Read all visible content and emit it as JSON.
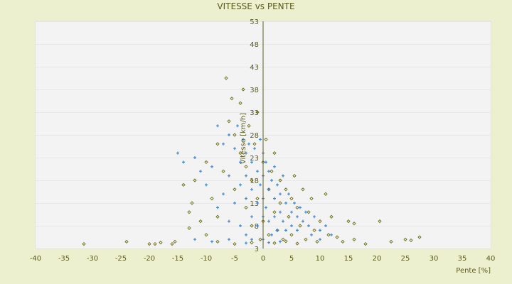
{
  "chart_data": {
    "type": "scatter",
    "title": "VITESSE vs PENTE",
    "xlabel": "Pente [%]",
    "ylabel": "Vitesse [km/h]",
    "xlim": [
      -40,
      40
    ],
    "ylim": [
      3,
      53
    ],
    "xticks": [
      -40,
      -35,
      -30,
      -25,
      -20,
      -15,
      -10,
      -5,
      0,
      5,
      10,
      15,
      20,
      25,
      30,
      35,
      40
    ],
    "yticks": [
      3,
      8,
      13,
      18,
      23,
      28,
      33,
      38,
      43,
      48,
      53
    ],
    "grid": "horizontal alternating bands",
    "legend": "none",
    "series": [
      {
        "color": "#6b6b10",
        "marker": "diamond",
        "points": [
          [
            -31.5,
            4
          ],
          [
            -24,
            4.5
          ],
          [
            -20,
            4
          ],
          [
            -19,
            4
          ],
          [
            -18,
            4.3
          ],
          [
            -16,
            4
          ],
          [
            -15.5,
            4.5
          ],
          [
            -14,
            17
          ],
          [
            -13,
            11
          ],
          [
            -13,
            7.5
          ],
          [
            -12.5,
            13
          ],
          [
            -12,
            18
          ],
          [
            -11,
            9
          ],
          [
            -10,
            22
          ],
          [
            -10,
            6
          ],
          [
            -9,
            14
          ],
          [
            -8,
            26
          ],
          [
            -8,
            10
          ],
          [
            -7,
            20
          ],
          [
            -6.5,
            40.5
          ],
          [
            -6,
            31
          ],
          [
            -5.5,
            36
          ],
          [
            -5,
            28
          ],
          [
            -5,
            16
          ],
          [
            -4,
            35
          ],
          [
            -4,
            24
          ],
          [
            -3.5,
            38
          ],
          [
            -3,
            21
          ],
          [
            -3,
            12
          ],
          [
            -2.5,
            30
          ],
          [
            -2,
            8
          ],
          [
            -2,
            18
          ],
          [
            -1.5,
            26
          ],
          [
            -1,
            33
          ],
          [
            -1,
            14
          ],
          [
            -0.5,
            5
          ],
          [
            0,
            22
          ],
          [
            0,
            9
          ],
          [
            0.5,
            27
          ],
          [
            1,
            16
          ],
          [
            1,
            6
          ],
          [
            1.5,
            20
          ],
          [
            2,
            11
          ],
          [
            2,
            24
          ],
          [
            2.5,
            7
          ],
          [
            3,
            18
          ],
          [
            3,
            13
          ],
          [
            3.5,
            5
          ],
          [
            4,
            16
          ],
          [
            4.5,
            10
          ],
          [
            5,
            14
          ],
          [
            5,
            6
          ],
          [
            5.5,
            19
          ],
          [
            6,
            12
          ],
          [
            6.5,
            8
          ],
          [
            7,
            16
          ],
          [
            7.5,
            5
          ],
          [
            8,
            11
          ],
          [
            8.5,
            14
          ],
          [
            9,
            7
          ],
          [
            9.5,
            4.5
          ],
          [
            10,
            9
          ],
          [
            11,
            15
          ],
          [
            11.5,
            6
          ],
          [
            12,
            10
          ],
          [
            13,
            5.5
          ],
          [
            14,
            4.5
          ],
          [
            15,
            9
          ],
          [
            16,
            8.5
          ],
          [
            16,
            5
          ],
          [
            18,
            4
          ],
          [
            20.5,
            9
          ],
          [
            22.5,
            4.5
          ],
          [
            25,
            5
          ],
          [
            26,
            4.8
          ],
          [
            27.5,
            5.5
          ],
          [
            -8,
            4.5
          ],
          [
            -5,
            4
          ],
          [
            -2,
            4.3
          ],
          [
            2,
            4.2
          ],
          [
            4,
            4.6
          ],
          [
            6,
            4.1
          ]
        ]
      },
      {
        "color": "#3c87d6",
        "marker": "plus",
        "points": [
          [
            -15,
            24
          ],
          [
            -14,
            22
          ],
          [
            -12,
            23
          ],
          [
            -11,
            20
          ],
          [
            -10,
            17
          ],
          [
            -9,
            21
          ],
          [
            -8,
            30
          ],
          [
            -8,
            12
          ],
          [
            -7,
            26
          ],
          [
            -7,
            15
          ],
          [
            -6,
            28
          ],
          [
            -6,
            19
          ],
          [
            -6,
            9
          ],
          [
            -5,
            25
          ],
          [
            -5,
            13
          ],
          [
            -4.5,
            30
          ],
          [
            -4,
            22
          ],
          [
            -4,
            17
          ],
          [
            -4,
            8
          ],
          [
            -3.5,
            27
          ],
          [
            -3,
            24
          ],
          [
            -3,
            19
          ],
          [
            -3,
            14
          ],
          [
            -3,
            6
          ],
          [
            -2.5,
            26
          ],
          [
            -2,
            22
          ],
          [
            -2,
            16
          ],
          [
            -2,
            10
          ],
          [
            -2,
            5
          ],
          [
            -1.5,
            25
          ],
          [
            -1,
            20
          ],
          [
            -1,
            13
          ],
          [
            -1,
            8
          ],
          [
            -0.5,
            27
          ],
          [
            -0.5,
            17
          ],
          [
            0,
            24
          ],
          [
            0,
            19
          ],
          [
            0,
            14
          ],
          [
            0,
            10
          ],
          [
            0,
            5
          ],
          [
            0.5,
            22
          ],
          [
            0.5,
            12
          ],
          [
            1,
            20
          ],
          [
            1,
            16
          ],
          [
            1,
            9
          ],
          [
            1.5,
            18
          ],
          [
            1.5,
            6
          ],
          [
            2,
            21
          ],
          [
            2,
            14
          ],
          [
            2,
            10
          ],
          [
            2.5,
            17
          ],
          [
            2.5,
            7
          ],
          [
            3,
            15
          ],
          [
            3,
            11
          ],
          [
            3.5,
            19
          ],
          [
            3.5,
            9
          ],
          [
            4,
            13
          ],
          [
            4,
            7
          ],
          [
            4.5,
            15
          ],
          [
            5,
            11
          ],
          [
            5,
            8
          ],
          [
            5.5,
            13
          ],
          [
            6,
            10
          ],
          [
            6,
            7
          ],
          [
            6.5,
            12
          ],
          [
            7,
            9
          ],
          [
            7.5,
            11
          ],
          [
            8,
            8
          ],
          [
            8.5,
            6
          ],
          [
            9,
            10
          ],
          [
            10,
            7
          ],
          [
            10,
            5
          ],
          [
            11,
            8
          ],
          [
            12,
            6
          ],
          [
            -12,
            5
          ],
          [
            -9,
            4.5
          ],
          [
            -6,
            5
          ],
          [
            -3,
            4.2
          ],
          [
            1,
            4.3
          ],
          [
            3,
            4.5
          ]
        ]
      }
    ]
  }
}
